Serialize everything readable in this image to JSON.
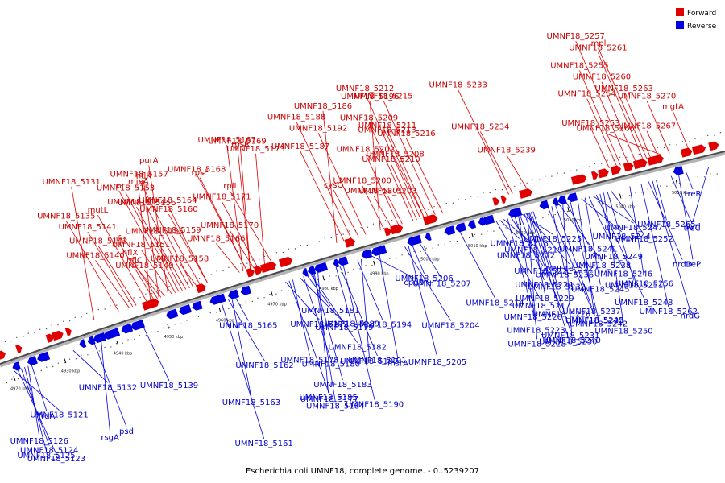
{
  "caption": "Escherichia coli UMNF18, complete genome. - 0..5239207",
  "legend": [
    {
      "label": "Forward",
      "color": "#e00000"
    },
    {
      "label": "Reverse",
      "color": "#0000e0"
    }
  ],
  "tick_labels": [
    "4920 kbp",
    "4930 kbp",
    "4940 kbp",
    "4950 kbp",
    "4960 kbp",
    "4970 kbp",
    "4980 kbp",
    "4990 kbp",
    "5000 kbp",
    "5010 kbp",
    "5020 kbp",
    "5030 kbp",
    "5040 kbp",
    "5050 kbp"
  ],
  "forward_labels": [
    {
      "text": "UMNF18_5266",
      "t": 0.92
    },
    {
      "text": "UMNF18_5263",
      "t": 0.905
    },
    {
      "text": "UMNF18_5261",
      "t": 0.895
    },
    {
      "text": "mgtA",
      "t": 0.955
    },
    {
      "text": "UMNF18_5260",
      "t": 0.885
    },
    {
      "text": "UMNF18_5257",
      "t": 0.875
    },
    {
      "text": "UMNF18_5270",
      "t": 0.93
    },
    {
      "text": "UMNF18_5255",
      "t": 0.865
    },
    {
      "text": "UMNF18_5267",
      "t": 0.915
    },
    {
      "text": "UMNF18_5254",
      "t": 0.86
    },
    {
      "text": "mpl",
      "t": 0.9
    },
    {
      "text": "UMNF18_5253",
      "t": 0.85
    },
    {
      "text": "UMNF18_5213",
      "t": 0.6
    },
    {
      "text": "UMNF18_5212",
      "t": 0.595
    },
    {
      "text": "UMNF18_5210",
      "t": 0.59
    },
    {
      "text": "UMNF18_5209",
      "t": 0.585
    },
    {
      "text": "UMNF18_5203",
      "t": 0.57
    },
    {
      "text": "UMNF18_5202",
      "t": 0.565
    },
    {
      "text": "UMNF18_5215",
      "t": 0.615
    },
    {
      "text": "UMNF18_5200",
      "t": 0.545
    },
    {
      "text": "UMNF18_5211",
      "t": 0.605
    },
    {
      "text": "UMNF18_5196",
      "t": 0.54
    },
    {
      "text": "UMNF18_5208",
      "t": 0.6
    },
    {
      "text": "UMNF18_5192",
      "t": 0.52
    },
    {
      "text": "UMNF18_5201",
      "t": 0.555
    },
    {
      "text": "UMNF18_5216",
      "t": 0.625
    },
    {
      "text": "UMNF18_5188",
      "t": 0.5
    },
    {
      "text": "cysQ",
      "t": 0.51
    },
    {
      "text": "UMNF18_5187",
      "t": 0.49
    },
    {
      "text": "UMNF18_5186",
      "t": 0.48
    },
    {
      "text": "UMNF18_5234",
      "t": 0.72
    },
    {
      "text": "UMNF18_5233",
      "t": 0.715
    },
    {
      "text": "UMNF18_5239",
      "t": 0.74
    },
    {
      "text": "UMNF18_5164",
      "t": 0.3
    },
    {
      "text": "rpsR",
      "t": 0.36
    },
    {
      "text": "UMNF18_5159",
      "t": 0.29
    },
    {
      "text": "rpsF",
      "t": 0.355
    },
    {
      "text": "UMNF18_5158",
      "t": 0.285
    },
    {
      "text": "UMNF18_5171",
      "t": 0.37
    },
    {
      "text": "UMNF18_5157",
      "t": 0.28
    },
    {
      "text": "UMNF18_5170",
      "t": 0.365
    },
    {
      "text": "UMNF18_5156",
      "t": 0.275
    },
    {
      "text": "UMNF18_5169",
      "t": 0.36
    },
    {
      "text": "UMNF18_5155",
      "t": 0.27
    },
    {
      "text": "UMNF18_5168",
      "t": 0.355
    },
    {
      "text": "UMNF18_5149",
      "t": 0.24
    },
    {
      "text": "UMNF18_5160",
      "t": 0.3
    },
    {
      "text": "UMNF18_5173",
      "t": 0.38
    },
    {
      "text": "hflX",
      "t": 0.23
    },
    {
      "text": "UMNF18_5154",
      "t": 0.265
    },
    {
      "text": "UMNF18_5167",
      "t": 0.35
    },
    {
      "text": "hfq",
      "t": 0.225
    },
    {
      "text": "UMNF18_5153",
      "t": 0.26
    },
    {
      "text": "UMNF18_5166",
      "t": 0.345
    },
    {
      "text": "rplI",
      "t": 0.39
    },
    {
      "text": "miaA",
      "t": 0.22
    },
    {
      "text": "UMNF18_5151",
      "t": 0.25
    },
    {
      "text": "mutL",
      "t": 0.215
    },
    {
      "text": "purA",
      "t": 0.245
    },
    {
      "text": "UMNF18_5142",
      "t": 0.2
    },
    {
      "text": "rnr",
      "t": 0.255
    },
    {
      "text": "hflC",
      "t": 0.235
    },
    {
      "text": "UMNF18_5141",
      "t": 0.195
    },
    {
      "text": "hflK",
      "t": 0.232
    },
    {
      "text": "UMNF18_5140",
      "t": 0.19
    },
    {
      "text": "UMNF18_5135",
      "t": 0.175
    },
    {
      "text": "UMNF18_5131",
      "t": 0.14
    }
  ],
  "reverse_labels": [
    {
      "text": "treR",
      "t": 0.945
    },
    {
      "text": "pyrI",
      "t": 0.975
    },
    {
      "text": "UMNF18_5256",
      "t": 0.87
    },
    {
      "text": "nrdG",
      "t": 0.9
    },
    {
      "text": "treC",
      "t": 0.925
    },
    {
      "text": "treP",
      "t": 0.935
    },
    {
      "text": "UMNF18_5262",
      "t": 0.885
    },
    {
      "text": "UMNF18_5265",
      "t": 0.905
    },
    {
      "text": "nrdD",
      "t": 0.895
    },
    {
      "text": "UMNF18_5243",
      "t": 0.8
    },
    {
      "text": "UMNF18_5244",
      "t": 0.805
    },
    {
      "text": "UMNF18_5232",
      "t": 0.74
    },
    {
      "text": "UMNF18_5235",
      "t": 0.76
    },
    {
      "text": "UMNF18_5219",
      "t": 0.7
    },
    {
      "text": "UMNF18_5236",
      "t": 0.765
    },
    {
      "text": "UMNF18_5237",
      "t": 0.77
    },
    {
      "text": "UMNF18_5218",
      "t": 0.695
    },
    {
      "text": "UMNF18_5238",
      "t": 0.775
    },
    {
      "text": "UMNF18_5220",
      "t": 0.705
    },
    {
      "text": "UMNF18_5240",
      "t": 0.78
    },
    {
      "text": "UMNF18_5221",
      "t": 0.71
    },
    {
      "text": "UMNF18_5245",
      "t": 0.81
    },
    {
      "text": "UMNF18_5230",
      "t": 0.735
    },
    {
      "text": "UMNF18_5241",
      "t": 0.785
    },
    {
      "text": "UMNF18_5217",
      "t": 0.69
    },
    {
      "text": "UMNF18_5242",
      "t": 0.79
    },
    {
      "text": "UMNF18_5222",
      "t": 0.715
    },
    {
      "text": "UMNF18_5246",
      "t": 0.815
    },
    {
      "text": "UMNF18_5223",
      "t": 0.72
    },
    {
      "text": "UMNF18_5247",
      "t": 0.82
    },
    {
      "text": "UMNF18_5224",
      "t": 0.722
    },
    {
      "text": "UMNF18_5248",
      "t": 0.825
    },
    {
      "text": "UMNF18_5225",
      "t": 0.725
    },
    {
      "text": "UMNF18_5249",
      "t": 0.83
    },
    {
      "text": "UMNF18_5226",
      "t": 0.728
    },
    {
      "text": "UMNF18_5250",
      "t": 0.835
    },
    {
      "text": "UMNF18_5227",
      "t": 0.73
    },
    {
      "text": "UMNF18_5251",
      "t": 0.84
    },
    {
      "text": "UMNF18_5228",
      "t": 0.732
    },
    {
      "text": "UMNF18_5252",
      "t": 0.845
    },
    {
      "text": "UMNF18_5229",
      "t": 0.734
    },
    {
      "text": "UMNF18_5231",
      "t": 0.737
    },
    {
      "text": "UMNF18_5207",
      "t": 0.585
    },
    {
      "text": "UMNF18_5204",
      "t": 0.565
    },
    {
      "text": "UMNF18_5205",
      "t": 0.57
    },
    {
      "text": "UMNF18_5206",
      "t": 0.575
    },
    {
      "text": "UMNF18_5214",
      "t": 0.64
    },
    {
      "text": "msrA",
      "t": 0.53
    },
    {
      "text": "cpdB",
      "t": 0.52
    },
    {
      "text": "UMNF18_5194",
      "t": 0.5
    },
    {
      "text": "UMNF18_5197",
      "t": 0.505
    },
    {
      "text": "UMNF18_5190",
      "t": 0.48
    },
    {
      "text": "UMNF18_5189",
      "t": 0.47
    },
    {
      "text": "UMNF18_5191",
      "t": 0.475
    },
    {
      "text": "UMNF18_5184",
      "t": 0.44
    },
    {
      "text": "UMNF18_5179",
      "t": 0.42
    },
    {
      "text": "UMNF18_5180",
      "t": 0.425
    },
    {
      "text": "UMNF18_5185",
      "t": 0.445
    },
    {
      "text": "UMNF18_5172",
      "t": 0.4
    },
    {
      "text": "UMNF18_5178",
      "t": 0.41
    },
    {
      "text": "UMNF18_5177",
      "t": 0.405
    },
    {
      "text": "UMNF18_5181",
      "t": 0.43
    },
    {
      "text": "UMNF18_5182",
      "t": 0.435
    },
    {
      "text": "UMNF18_5183",
      "t": 0.438
    },
    {
      "text": "UMNF18_5165",
      "t": 0.33
    },
    {
      "text": "UMNF18_5162",
      "t": 0.32
    },
    {
      "text": "UMNF18_5163",
      "t": 0.325
    },
    {
      "text": "UMNF18_5161",
      "t": 0.31
    },
    {
      "text": "UMNF18_5139",
      "t": 0.2
    },
    {
      "text": "rsgA",
      "t": 0.14
    },
    {
      "text": "psd",
      "t": 0.13
    },
    {
      "text": "frdA",
      "t": 0.04
    },
    {
      "text": "UMNF18_5123",
      "t": 0.02
    },
    {
      "text": "UMNF18_5125",
      "t": 0.03
    },
    {
      "text": "UMNF18_5121",
      "t": 0.015
    },
    {
      "text": "UMNF18_5124",
      "t": 0.025
    },
    {
      "text": "UMNF18_5126",
      "t": 0.035
    },
    {
      "text": "UMNF18_5132",
      "t": 0.1
    }
  ]
}
